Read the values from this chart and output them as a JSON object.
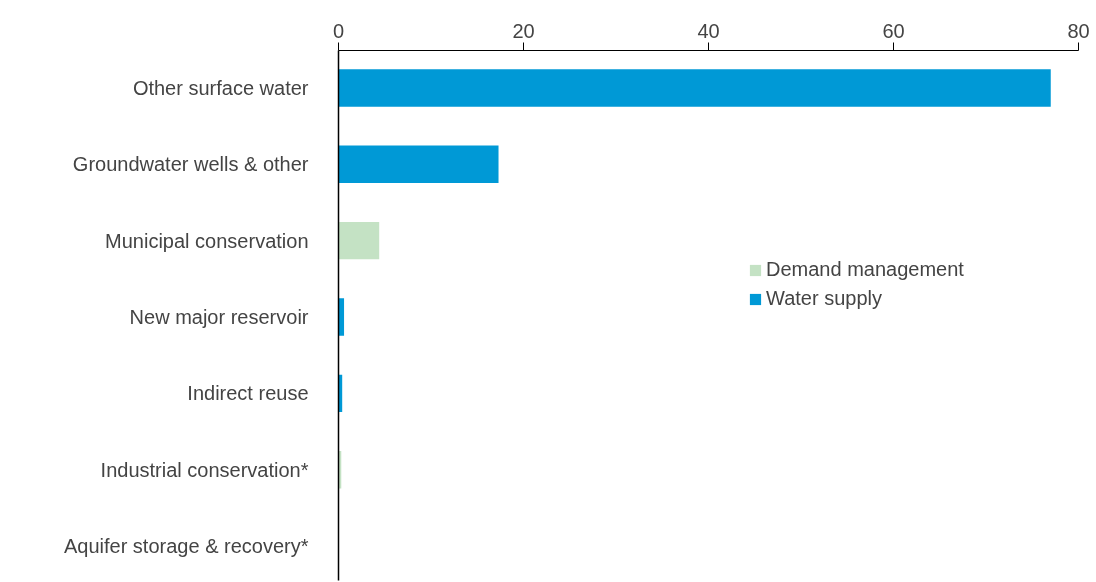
{
  "chart_data": {
    "type": "bar",
    "orientation": "horizontal",
    "categories": [
      "Other surface water",
      "Groundwater wells & other",
      "Municipal conservation",
      "New major reservoir",
      "Indirect reuse",
      "Industrial conservation*",
      "Aquifer storage & recovery*"
    ],
    "series": [
      {
        "name": "Demand management",
        "color": "#c4e2c4",
        "values": [
          null,
          null,
          4.4,
          null,
          null,
          0.3,
          null
        ]
      },
      {
        "name": "Water supply",
        "color": "#0099d6",
        "values": [
          77,
          17.3,
          null,
          0.6,
          0.4,
          null,
          0
        ]
      }
    ],
    "xlim": [
      0,
      80
    ],
    "xticks": [
      0,
      20,
      40,
      60,
      80
    ],
    "grid": false,
    "legend": "right"
  }
}
